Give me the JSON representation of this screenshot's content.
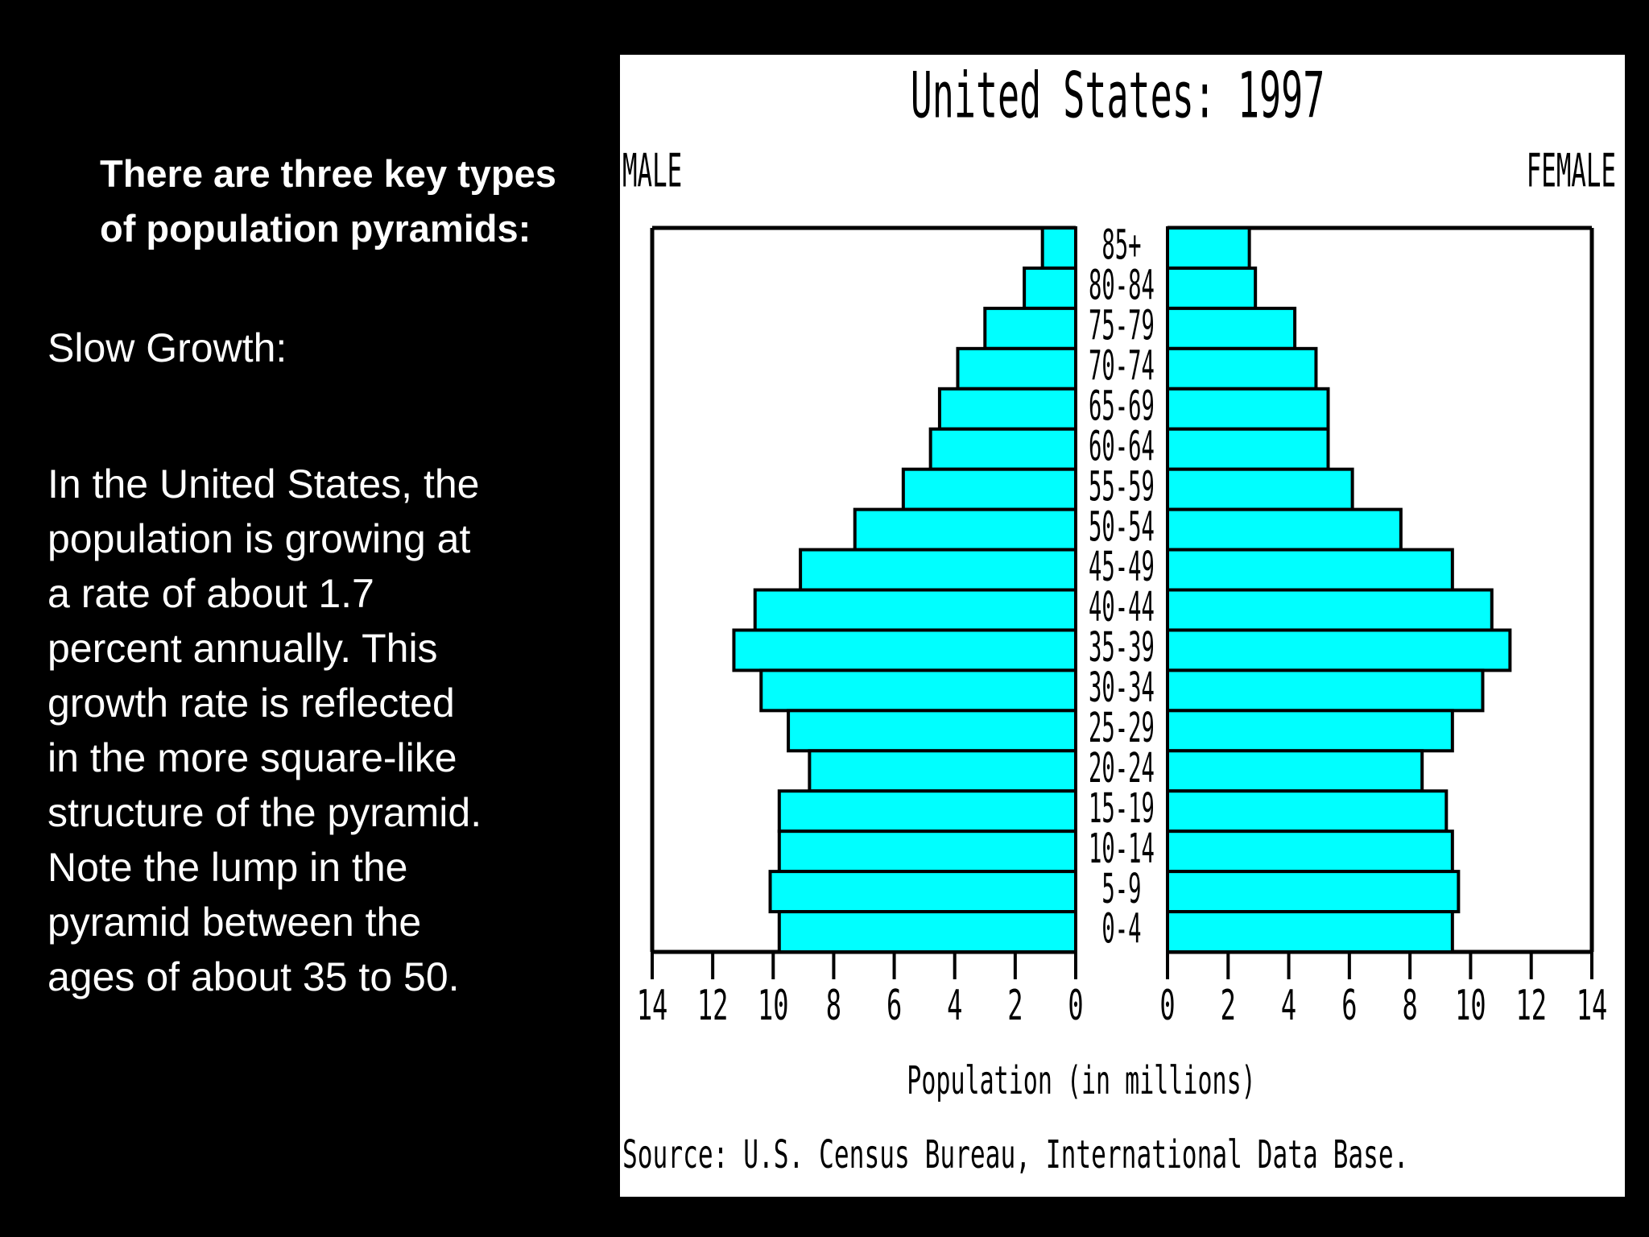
{
  "slide": {
    "heading": "There are three key types of population pyramids:",
    "subheading": "Slow Growth:",
    "paragraph": "In the United States, the population is growing at a rate of about 1.7 percent annually. This growth rate is reflected in the more square-like structure of the pyramid. Note the lump in the pyramid between the ages of about 35 to 50."
  },
  "chart_data": {
    "type": "pyramid",
    "title": "United States: 1997",
    "categories": [
      "85+",
      "80-84",
      "75-79",
      "70-74",
      "65-69",
      "60-64",
      "55-59",
      "50-54",
      "45-49",
      "40-44",
      "35-39",
      "30-34",
      "25-29",
      "20-24",
      "15-19",
      "10-14",
      "5-9",
      "0-4"
    ],
    "series": [
      {
        "name": "MALE",
        "color": "#00ffff",
        "values": [
          1.1,
          1.7,
          3.0,
          3.9,
          4.5,
          4.8,
          5.7,
          7.3,
          9.1,
          10.6,
          11.3,
          10.4,
          9.5,
          8.8,
          9.8,
          9.8,
          10.1,
          9.8
        ]
      },
      {
        "name": "FEMALE",
        "color": "#00ffff",
        "values": [
          2.7,
          2.9,
          4.2,
          4.9,
          5.3,
          5.3,
          6.1,
          7.7,
          9.4,
          10.7,
          11.3,
          10.4,
          9.4,
          8.4,
          9.2,
          9.4,
          9.6,
          9.4
        ]
      }
    ],
    "xlim": [
      0,
      14
    ],
    "xticks": [
      0,
      2,
      4,
      6,
      8,
      10,
      12,
      14
    ],
    "x_label": "Population (in millions)",
    "source": "Source: U.S. Census Bureau, International Data Base."
  }
}
